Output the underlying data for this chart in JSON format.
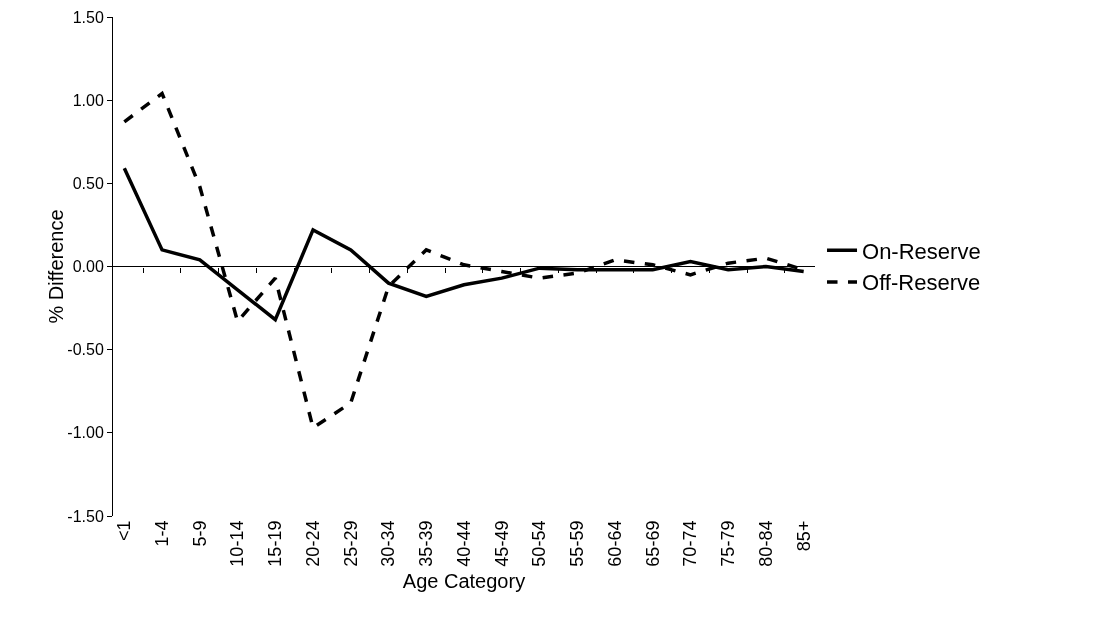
{
  "chart_data": {
    "type": "line",
    "xlabel": "Age Category",
    "ylabel": "% Difference",
    "categories": [
      "<1",
      "1-4",
      "5-9",
      "10-14",
      "15-19",
      "20-24",
      "25-29",
      "30-34",
      "35-39",
      "40-44",
      "45-49",
      "50-54",
      "55-59",
      "60-64",
      "65-69",
      "70-74",
      "75-79",
      "80-84",
      "85+"
    ],
    "series": [
      {
        "name": "On-Reserve",
        "color": "#000000",
        "line_style": "solid",
        "values": [
          0.59,
          0.1,
          0.04,
          -0.14,
          -0.32,
          0.22,
          0.1,
          -0.1,
          -0.18,
          -0.11,
          -0.07,
          -0.01,
          -0.02,
          -0.02,
          -0.02,
          0.03,
          -0.02,
          0.0,
          -0.03
        ]
      },
      {
        "name": "Off-Reserve",
        "color": "#000000",
        "line_style": "dashed",
        "values": [
          0.87,
          1.04,
          0.48,
          -0.33,
          -0.07,
          -0.97,
          -0.82,
          -0.12,
          0.1,
          0.01,
          -0.03,
          -0.07,
          -0.04,
          0.04,
          0.01,
          -0.05,
          0.02,
          0.05,
          -0.02
        ]
      }
    ],
    "ylim": [
      -1.5,
      1.5
    ],
    "yticks": [
      {
        "value": -1.5,
        "label": "-1.50"
      },
      {
        "value": -1,
        "label": "-1.00"
      },
      {
        "value": -0.5,
        "label": "-0.50"
      },
      {
        "value": 0,
        "label": "0.00"
      },
      {
        "value": 0.5,
        "label": "0.50"
      },
      {
        "value": 1,
        "label": "1.00"
      },
      {
        "value": 1.5,
        "label": "1.50"
      }
    ],
    "ref_lines": [
      {
        "axis": "y",
        "value": 0,
        "color": "#000000",
        "line_style": "solid"
      }
    ],
    "grid": false,
    "legend": "right",
    "marker": "none"
  }
}
